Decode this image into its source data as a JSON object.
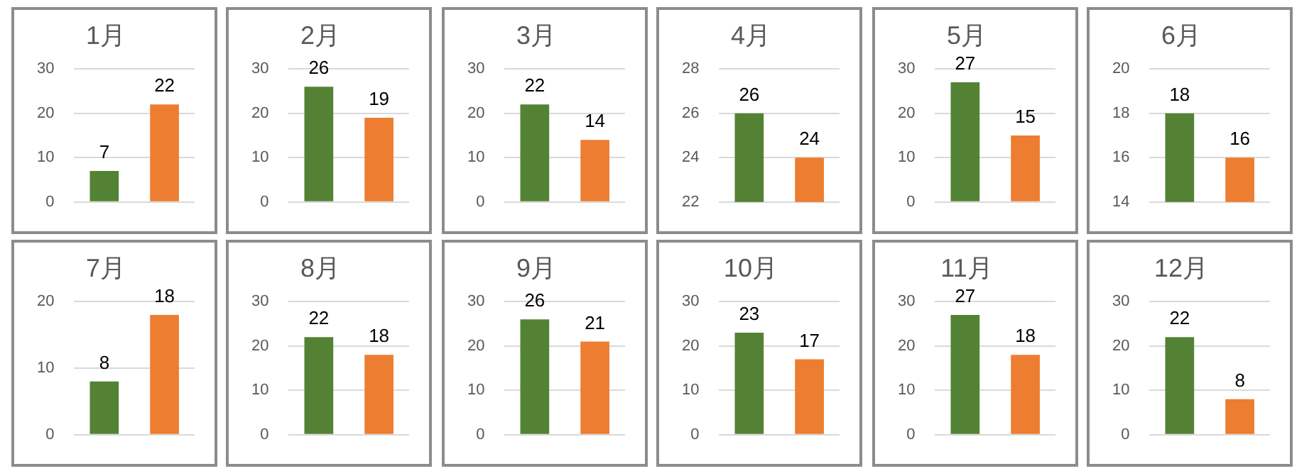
{
  "chart_data": [
    {
      "type": "bar",
      "title": "1月",
      "categories": [
        null,
        null
      ],
      "values": [
        7,
        22
      ],
      "colors": [
        "#548235",
        "#ed7d31"
      ],
      "ylim": [
        0,
        30
      ],
      "yticks": [
        0,
        10,
        20,
        30
      ],
      "grid": "y",
      "data_labels": true
    },
    {
      "type": "bar",
      "title": "2月",
      "categories": [
        null,
        null
      ],
      "values": [
        26,
        19
      ],
      "colors": [
        "#548235",
        "#ed7d31"
      ],
      "ylim": [
        0,
        30
      ],
      "yticks": [
        0,
        10,
        20,
        30
      ],
      "grid": "y",
      "data_labels": true
    },
    {
      "type": "bar",
      "title": "3月",
      "categories": [
        null,
        null
      ],
      "values": [
        22,
        14
      ],
      "colors": [
        "#548235",
        "#ed7d31"
      ],
      "ylim": [
        0,
        30
      ],
      "yticks": [
        0,
        10,
        20,
        30
      ],
      "grid": "y",
      "data_labels": true
    },
    {
      "type": "bar",
      "title": "4月",
      "categories": [
        null,
        null
      ],
      "values": [
        26,
        24
      ],
      "colors": [
        "#548235",
        "#ed7d31"
      ],
      "ylim": [
        22,
        28
      ],
      "yticks": [
        22,
        24,
        26,
        28
      ],
      "grid": "y",
      "data_labels": true
    },
    {
      "type": "bar",
      "title": "5月",
      "categories": [
        null,
        null
      ],
      "values": [
        27,
        15
      ],
      "colors": [
        "#548235",
        "#ed7d31"
      ],
      "ylim": [
        0,
        30
      ],
      "yticks": [
        0,
        10,
        20,
        30
      ],
      "grid": "y",
      "data_labels": true
    },
    {
      "type": "bar",
      "title": "6月",
      "categories": [
        null,
        null
      ],
      "values": [
        18,
        16
      ],
      "colors": [
        "#548235",
        "#ed7d31"
      ],
      "ylim": [
        14,
        20
      ],
      "yticks": [
        14,
        16,
        18,
        20
      ],
      "grid": "y",
      "data_labels": true
    },
    {
      "type": "bar",
      "title": "7月",
      "categories": [
        null,
        null
      ],
      "values": [
        8,
        18
      ],
      "colors": [
        "#548235",
        "#ed7d31"
      ],
      "ylim": [
        0,
        20
      ],
      "yticks": [
        0,
        10,
        20
      ],
      "grid": "y",
      "data_labels": true
    },
    {
      "type": "bar",
      "title": "8月",
      "categories": [
        null,
        null
      ],
      "values": [
        22,
        18
      ],
      "colors": [
        "#548235",
        "#ed7d31"
      ],
      "ylim": [
        0,
        30
      ],
      "yticks": [
        0,
        10,
        20,
        30
      ],
      "grid": "y",
      "data_labels": true
    },
    {
      "type": "bar",
      "title": "9月",
      "categories": [
        null,
        null
      ],
      "values": [
        26,
        21
      ],
      "colors": [
        "#548235",
        "#ed7d31"
      ],
      "ylim": [
        0,
        30
      ],
      "yticks": [
        0,
        10,
        20,
        30
      ],
      "grid": "y",
      "data_labels": true
    },
    {
      "type": "bar",
      "title": "10月",
      "categories": [
        null,
        null
      ],
      "values": [
        23,
        17
      ],
      "colors": [
        "#548235",
        "#ed7d31"
      ],
      "ylim": [
        0,
        30
      ],
      "yticks": [
        0,
        10,
        20,
        30
      ],
      "grid": "y",
      "data_labels": true
    },
    {
      "type": "bar",
      "title": "11月",
      "categories": [
        null,
        null
      ],
      "values": [
        27,
        18
      ],
      "colors": [
        "#548235",
        "#ed7d31"
      ],
      "ylim": [
        0,
        30
      ],
      "yticks": [
        0,
        10,
        20,
        30
      ],
      "grid": "y",
      "data_labels": true
    },
    {
      "type": "bar",
      "title": "12月",
      "categories": [
        null,
        null
      ],
      "values": [
        22,
        8
      ],
      "colors": [
        "#548235",
        "#ed7d31"
      ],
      "ylim": [
        0,
        30
      ],
      "yticks": [
        0,
        10,
        20,
        30
      ],
      "grid": "y",
      "data_labels": true
    }
  ]
}
